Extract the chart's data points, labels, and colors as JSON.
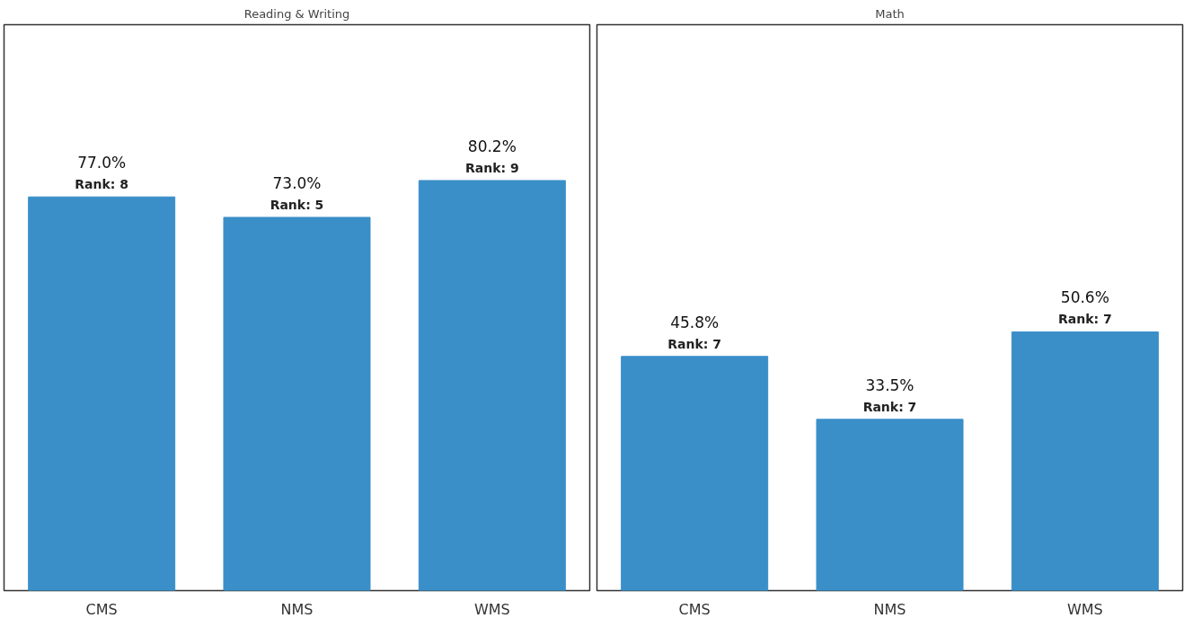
{
  "chart_data": [
    {
      "type": "bar",
      "title": "Reading & Writing",
      "categories": [
        "CMS",
        "NMS",
        "WMS"
      ],
      "values": [
        77.0,
        73.0,
        80.2
      ],
      "color": "#3a8fc9",
      "value_labels": [
        "77.0%",
        "73.0%",
        "80.2%"
      ],
      "annotations": [
        {
          "text": "Rank: 8",
          "x": "CMS",
          "y": 77.0
        },
        {
          "text": "Rank: 5",
          "x": "NMS",
          "y": 73.0
        },
        {
          "text": "Rank: 9",
          "x": "WMS",
          "y": 80.2
        }
      ]
    },
    {
      "type": "bar",
      "title": "Math",
      "categories": [
        "CMS",
        "NMS",
        "WMS"
      ],
      "values": [
        45.8,
        33.5,
        50.6
      ],
      "color": "#3a8fc9",
      "value_labels": [
        "45.8%",
        "33.5%",
        "50.6%"
      ],
      "annotations": [
        {
          "text": "Rank: 7",
          "x": "CMS",
          "y": 45.8
        },
        {
          "text": "Rank: 7",
          "x": "NMS",
          "y": 33.5
        },
        {
          "text": "Rank: 7",
          "x": "WMS",
          "y": 50.6
        }
      ]
    }
  ]
}
